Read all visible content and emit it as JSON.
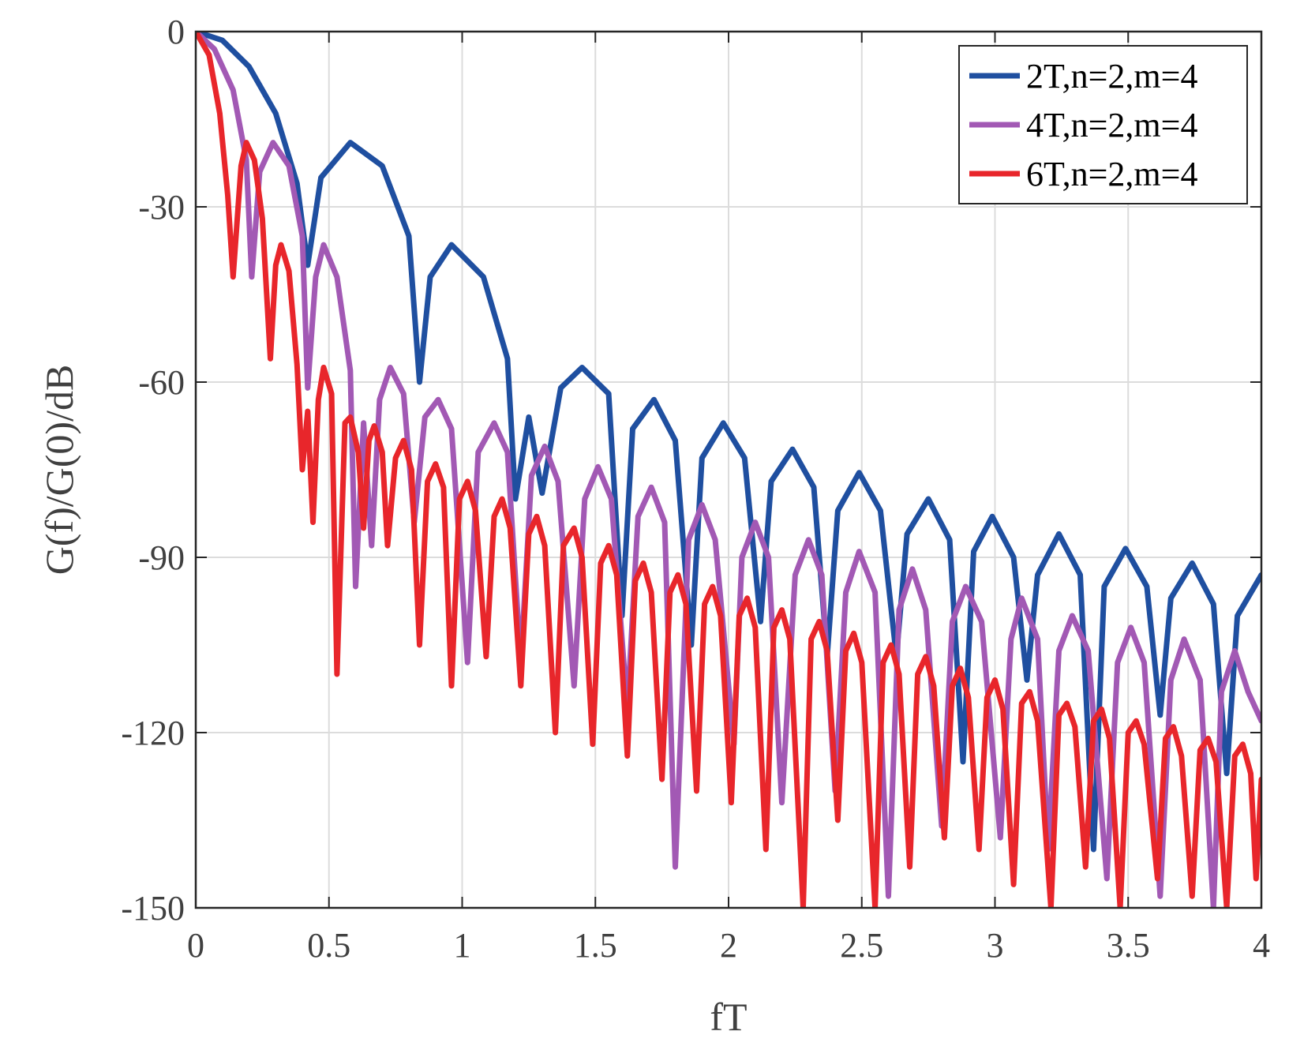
{
  "chart_data": {
    "type": "line",
    "xlabel": "fT",
    "ylabel": "G(f)/G(0)/dB",
    "xlim": [
      0,
      4
    ],
    "ylim": [
      -150,
      0
    ],
    "x_ticks": [
      "0",
      "0.5",
      "1",
      "1.5",
      "2",
      "2.5",
      "3",
      "3.5",
      "4"
    ],
    "y_ticks": [
      "0",
      "-30",
      "-60",
      "-90",
      "-120",
      "-150"
    ],
    "grid": true,
    "legend_position": "top-right",
    "series": [
      {
        "name": "2T,n=2,m=4",
        "color": "#1f4fa0",
        "points": [
          [
            0,
            0
          ],
          [
            0.1,
            -1.5
          ],
          [
            0.2,
            -6
          ],
          [
            0.3,
            -14
          ],
          [
            0.38,
            -26
          ],
          [
            0.42,
            -40
          ],
          [
            0.47,
            -25
          ],
          [
            0.58,
            -19
          ],
          [
            0.7,
            -23
          ],
          [
            0.8,
            -35
          ],
          [
            0.84,
            -60
          ],
          [
            0.88,
            -42
          ],
          [
            0.96,
            -36.5
          ],
          [
            1.08,
            -42
          ],
          [
            1.17,
            -56
          ],
          [
            1.2,
            -80
          ],
          [
            1.25,
            -66
          ],
          [
            1.3,
            -79
          ],
          [
            1.37,
            -61
          ],
          [
            1.45,
            -57.5
          ],
          [
            1.55,
            -62
          ],
          [
            1.6,
            -100
          ],
          [
            1.64,
            -68
          ],
          [
            1.72,
            -63
          ],
          [
            1.8,
            -70
          ],
          [
            1.86,
            -105
          ],
          [
            1.9,
            -73
          ],
          [
            1.98,
            -67
          ],
          [
            2.06,
            -73
          ],
          [
            2.12,
            -101
          ],
          [
            2.16,
            -77
          ],
          [
            2.24,
            -71.5
          ],
          [
            2.32,
            -78
          ],
          [
            2.37,
            -107
          ],
          [
            2.41,
            -82
          ],
          [
            2.49,
            -75.5
          ],
          [
            2.57,
            -82
          ],
          [
            2.63,
            -107
          ],
          [
            2.67,
            -86
          ],
          [
            2.75,
            -80
          ],
          [
            2.83,
            -87
          ],
          [
            2.88,
            -125
          ],
          [
            2.92,
            -89
          ],
          [
            2.99,
            -83
          ],
          [
            3.07,
            -90
          ],
          [
            3.12,
            -111
          ],
          [
            3.16,
            -93
          ],
          [
            3.24,
            -86
          ],
          [
            3.32,
            -93
          ],
          [
            3.37,
            -140
          ],
          [
            3.41,
            -95
          ],
          [
            3.49,
            -88.5
          ],
          [
            3.57,
            -95
          ],
          [
            3.62,
            -117
          ],
          [
            3.66,
            -97
          ],
          [
            3.74,
            -91
          ],
          [
            3.82,
            -98
          ],
          [
            3.87,
            -127
          ],
          [
            3.91,
            -100
          ],
          [
            4.0,
            -93
          ]
        ]
      },
      {
        "name": "4T,n=2,m=4",
        "color": "#a259b4",
        "points": [
          [
            0,
            0
          ],
          [
            0.07,
            -3
          ],
          [
            0.14,
            -10
          ],
          [
            0.19,
            -22
          ],
          [
            0.21,
            -42
          ],
          [
            0.24,
            -24
          ],
          [
            0.29,
            -19
          ],
          [
            0.35,
            -23
          ],
          [
            0.4,
            -35
          ],
          [
            0.42,
            -61
          ],
          [
            0.45,
            -42
          ],
          [
            0.48,
            -36.5
          ],
          [
            0.53,
            -42
          ],
          [
            0.58,
            -58
          ],
          [
            0.6,
            -95
          ],
          [
            0.63,
            -67
          ],
          [
            0.66,
            -88
          ],
          [
            0.69,
            -63
          ],
          [
            0.73,
            -57.5
          ],
          [
            0.78,
            -62
          ],
          [
            0.82,
            -84
          ],
          [
            0.86,
            -66
          ],
          [
            0.91,
            -63
          ],
          [
            0.96,
            -68
          ],
          [
            1.02,
            -108
          ],
          [
            1.06,
            -72
          ],
          [
            1.12,
            -67
          ],
          [
            1.17,
            -72
          ],
          [
            1.22,
            -108
          ],
          [
            1.26,
            -76
          ],
          [
            1.31,
            -71
          ],
          [
            1.36,
            -77
          ],
          [
            1.42,
            -112
          ],
          [
            1.46,
            -80
          ],
          [
            1.51,
            -74.5
          ],
          [
            1.56,
            -80
          ],
          [
            1.62,
            -116
          ],
          [
            1.66,
            -83
          ],
          [
            1.71,
            -78
          ],
          [
            1.76,
            -84
          ],
          [
            1.8,
            -143
          ],
          [
            1.85,
            -87
          ],
          [
            1.9,
            -81
          ],
          [
            1.95,
            -87
          ],
          [
            2.02,
            -122
          ],
          [
            2.05,
            -90
          ],
          [
            2.1,
            -84
          ],
          [
            2.15,
            -90
          ],
          [
            2.2,
            -132
          ],
          [
            2.25,
            -93
          ],
          [
            2.3,
            -87
          ],
          [
            2.35,
            -93
          ],
          [
            2.4,
            -130
          ],
          [
            2.44,
            -96
          ],
          [
            2.49,
            -89
          ],
          [
            2.55,
            -96
          ],
          [
            2.6,
            -148
          ],
          [
            2.64,
            -99
          ],
          [
            2.69,
            -92
          ],
          [
            2.74,
            -99
          ],
          [
            2.8,
            -136
          ],
          [
            2.84,
            -101
          ],
          [
            2.89,
            -95
          ],
          [
            2.95,
            -101
          ],
          [
            3.02,
            -138
          ],
          [
            3.06,
            -104
          ],
          [
            3.1,
            -97
          ],
          [
            3.16,
            -104
          ],
          [
            3.2,
            -140
          ],
          [
            3.24,
            -106
          ],
          [
            3.29,
            -100
          ],
          [
            3.35,
            -106
          ],
          [
            3.42,
            -145
          ],
          [
            3.46,
            -108
          ],
          [
            3.51,
            -102
          ],
          [
            3.56,
            -108
          ],
          [
            3.62,
            -148
          ],
          [
            3.66,
            -111
          ],
          [
            3.71,
            -104
          ],
          [
            3.77,
            -111
          ],
          [
            3.82,
            -150
          ],
          [
            3.85,
            -113
          ],
          [
            3.9,
            -106
          ],
          [
            3.95,
            -113
          ],
          [
            4.0,
            -118
          ]
        ]
      },
      {
        "name": "6T,n=2,m=4",
        "color": "#e8262b",
        "points": [
          [
            0,
            0
          ],
          [
            0.05,
            -4
          ],
          [
            0.09,
            -14
          ],
          [
            0.12,
            -28
          ],
          [
            0.14,
            -42
          ],
          [
            0.17,
            -23
          ],
          [
            0.19,
            -19
          ],
          [
            0.22,
            -22
          ],
          [
            0.25,
            -32
          ],
          [
            0.28,
            -56
          ],
          [
            0.3,
            -40
          ],
          [
            0.32,
            -36.5
          ],
          [
            0.35,
            -41
          ],
          [
            0.38,
            -57
          ],
          [
            0.4,
            -75
          ],
          [
            0.42,
            -65
          ],
          [
            0.44,
            -84
          ],
          [
            0.46,
            -63
          ],
          [
            0.48,
            -57.5
          ],
          [
            0.51,
            -62
          ],
          [
            0.53,
            -110
          ],
          [
            0.56,
            -67
          ],
          [
            0.58,
            -66
          ],
          [
            0.61,
            -72
          ],
          [
            0.63,
            -85
          ],
          [
            0.65,
            -70
          ],
          [
            0.67,
            -67.5
          ],
          [
            0.7,
            -72
          ],
          [
            0.72,
            -88
          ],
          [
            0.75,
            -73
          ],
          [
            0.78,
            -70
          ],
          [
            0.81,
            -75
          ],
          [
            0.84,
            -105
          ],
          [
            0.87,
            -77
          ],
          [
            0.9,
            -74
          ],
          [
            0.93,
            -78
          ],
          [
            0.96,
            -112
          ],
          [
            0.99,
            -80
          ],
          [
            1.02,
            -77
          ],
          [
            1.05,
            -82
          ],
          [
            1.09,
            -107
          ],
          [
            1.12,
            -83
          ],
          [
            1.15,
            -80
          ],
          [
            1.18,
            -85
          ],
          [
            1.22,
            -112
          ],
          [
            1.25,
            -86
          ],
          [
            1.28,
            -83
          ],
          [
            1.31,
            -88
          ],
          [
            1.35,
            -120
          ],
          [
            1.38,
            -88
          ],
          [
            1.42,
            -85
          ],
          [
            1.45,
            -90
          ],
          [
            1.49,
            -122
          ],
          [
            1.52,
            -91
          ],
          [
            1.55,
            -88
          ],
          [
            1.58,
            -93
          ],
          [
            1.62,
            -124
          ],
          [
            1.65,
            -94
          ],
          [
            1.68,
            -91
          ],
          [
            1.71,
            -96
          ],
          [
            1.75,
            -128
          ],
          [
            1.78,
            -96
          ],
          [
            1.81,
            -93
          ],
          [
            1.84,
            -98
          ],
          [
            1.88,
            -130
          ],
          [
            1.91,
            -98
          ],
          [
            1.94,
            -95
          ],
          [
            1.97,
            -100
          ],
          [
            2.01,
            -132
          ],
          [
            2.04,
            -100
          ],
          [
            2.07,
            -97
          ],
          [
            2.1,
            -102
          ],
          [
            2.14,
            -140
          ],
          [
            2.17,
            -102
          ],
          [
            2.2,
            -99
          ],
          [
            2.23,
            -104
          ],
          [
            2.28,
            -150
          ],
          [
            2.31,
            -104
          ],
          [
            2.34,
            -101
          ],
          [
            2.37,
            -106
          ],
          [
            2.41,
            -135
          ],
          [
            2.44,
            -106
          ],
          [
            2.47,
            -103
          ],
          [
            2.5,
            -108
          ],
          [
            2.55,
            -150
          ],
          [
            2.58,
            -108
          ],
          [
            2.61,
            -105
          ],
          [
            2.64,
            -110
          ],
          [
            2.68,
            -143
          ],
          [
            2.71,
            -110
          ],
          [
            2.74,
            -107
          ],
          [
            2.77,
            -112
          ],
          [
            2.81,
            -138
          ],
          [
            2.84,
            -112
          ],
          [
            2.87,
            -109
          ],
          [
            2.9,
            -114
          ],
          [
            2.94,
            -140
          ],
          [
            2.97,
            -114
          ],
          [
            3.0,
            -111
          ],
          [
            3.03,
            -116
          ],
          [
            3.07,
            -146
          ],
          [
            3.1,
            -115
          ],
          [
            3.13,
            -113
          ],
          [
            3.16,
            -118
          ],
          [
            3.21,
            -150
          ],
          [
            3.24,
            -117
          ],
          [
            3.27,
            -115
          ],
          [
            3.3,
            -119
          ],
          [
            3.34,
            -143
          ],
          [
            3.37,
            -118
          ],
          [
            3.4,
            -116
          ],
          [
            3.43,
            -121
          ],
          [
            3.47,
            -150
          ],
          [
            3.5,
            -120
          ],
          [
            3.53,
            -118
          ],
          [
            3.56,
            -122
          ],
          [
            3.61,
            -145
          ],
          [
            3.64,
            -121
          ],
          [
            3.67,
            -119
          ],
          [
            3.7,
            -124
          ],
          [
            3.74,
            -148
          ],
          [
            3.77,
            -123
          ],
          [
            3.8,
            -121
          ],
          [
            3.83,
            -125
          ],
          [
            3.87,
            -150
          ],
          [
            3.9,
            -124
          ],
          [
            3.93,
            -122
          ],
          [
            3.96,
            -127
          ],
          [
            3.98,
            -145
          ],
          [
            4.0,
            -128
          ]
        ]
      }
    ]
  }
}
